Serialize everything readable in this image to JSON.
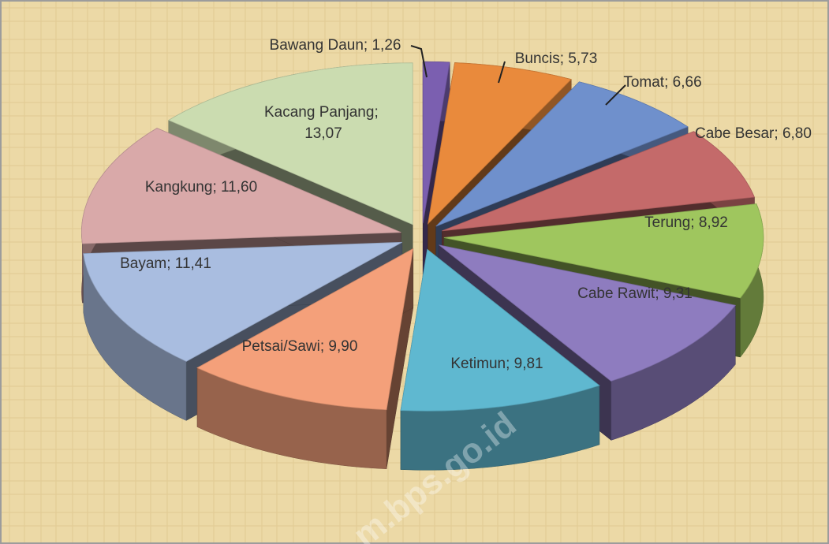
{
  "chart_data": {
    "type": "pie",
    "style": "3d-exploded",
    "categories": [
      "Bawang Daun",
      "Buncis",
      "Tomat",
      "Cabe Besar",
      "Terung",
      "Cabe Rawit",
      "Ketimun",
      "Petsai/Sawi",
      "Bayam",
      "Kangkung",
      "Kacang Panjang"
    ],
    "values": [
      1.26,
      5.73,
      6.66,
      6.8,
      8.92,
      9.31,
      9.81,
      9.9,
      11.41,
      11.6,
      13.07
    ],
    "value_labels": [
      "1,26",
      "5,73",
      "6,66",
      "6,80",
      "8,92",
      "9,31",
      "9,81",
      "9,90",
      "11,41",
      "11,60",
      "13,07"
    ],
    "label_separator": "; ",
    "colors": [
      "#7b5fb0",
      "#e98a3c",
      "#6f90cc",
      "#c46a6a",
      "#9fc65e",
      "#8e7cbf",
      "#5fb8d0",
      "#f4a07a",
      "#a9bde0",
      "#d9a9a9",
      "#cbdcb0"
    ],
    "watermark": "m.bps.go.id"
  }
}
